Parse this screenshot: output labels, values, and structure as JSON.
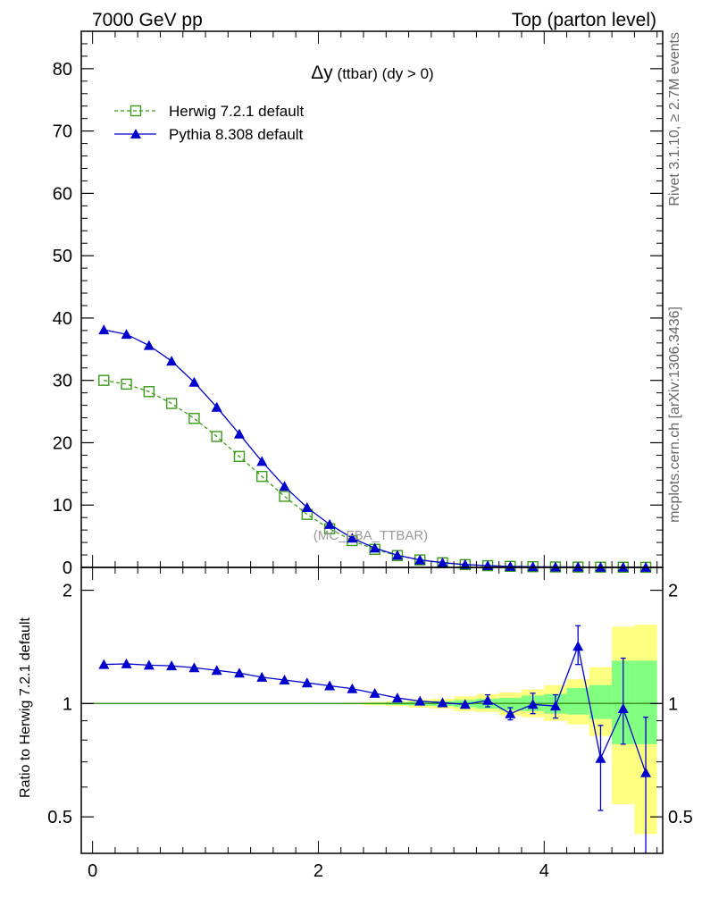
{
  "header": {
    "left_label": "7000 GeV pp",
    "right_label": "Top (parton level)"
  },
  "side_labels": {
    "rivet": "Rivet 3.1.10, ≥ 2.7M events",
    "source": "mcplots.cern.ch [arXiv:1306.3436]"
  },
  "watermark": "(MC_FBA_TTBAR)",
  "colors": {
    "herwig": "#3a9a1a",
    "pythia": "#0000cc",
    "band_yellow": "#ffff80",
    "band_green": "#80ff80"
  },
  "chart_data": [
    {
      "type": "line",
      "title_symbol": "Δy",
      "title_text": " (ttbar) (dy > 0)",
      "ylim": [
        0,
        86
      ],
      "xlim": [
        -0.1,
        5.05
      ],
      "yticks": [
        0,
        10,
        20,
        30,
        40,
        50,
        60,
        70,
        80
      ],
      "x": [
        0.1,
        0.3,
        0.5,
        0.7,
        0.9,
        1.1,
        1.3,
        1.5,
        1.7,
        1.9,
        2.1,
        2.3,
        2.5,
        2.7,
        2.9,
        3.1,
        3.3,
        3.5,
        3.7,
        3.9,
        4.1,
        4.3,
        4.5,
        4.7,
        4.9
      ],
      "series": [
        {
          "name": "Herwig 7.2.1 default",
          "marker": "open-square",
          "style": "dashed",
          "values": [
            30.0,
            29.4,
            28.2,
            26.3,
            23.9,
            21.0,
            17.8,
            14.6,
            11.4,
            8.5,
            6.2,
            4.3,
            2.9,
            1.9,
            1.2,
            0.75,
            0.45,
            0.28,
            0.17,
            0.11,
            0.07,
            0.05,
            0.04,
            0.03,
            0.02
          ]
        },
        {
          "name": "Pythia 8.308 default",
          "marker": "filled-triangle",
          "style": "solid",
          "values": [
            38.1,
            37.4,
            35.6,
            33.1,
            29.7,
            25.7,
            21.4,
            17.0,
            13.0,
            9.6,
            6.9,
            4.7,
            3.1,
            1.95,
            1.2,
            0.76,
            0.46,
            0.29,
            0.16,
            0.11,
            0.07,
            0.07,
            0.03,
            0.03,
            0.01
          ]
        }
      ],
      "legend_position": "top-left"
    },
    {
      "type": "line",
      "ylabel": "Ratio to Herwig 7.2.1 default",
      "ylim": [
        0.4,
        2.3
      ],
      "log_y": true,
      "xlim": [
        -0.1,
        5.05
      ],
      "xticks": [
        0,
        2,
        4
      ],
      "yticks": [
        0.5,
        1,
        2
      ],
      "reference_value": 1,
      "x": [
        0.1,
        0.3,
        0.5,
        0.7,
        0.9,
        1.1,
        1.3,
        1.5,
        1.7,
        1.9,
        2.1,
        2.3,
        2.5,
        2.7,
        2.9,
        3.1,
        3.3,
        3.5,
        3.7,
        3.9,
        4.1,
        4.3,
        4.5,
        4.7,
        4.9
      ],
      "series": [
        {
          "name": "Pythia 8.308 default",
          "values": [
            1.27,
            1.275,
            1.265,
            1.26,
            1.245,
            1.225,
            1.205,
            1.175,
            1.155,
            1.135,
            1.115,
            1.095,
            1.065,
            1.035,
            1.015,
            1.005,
            0.995,
            1.02,
            0.94,
            0.995,
            0.985,
            1.42,
            0.715,
            0.97,
            0.655
          ],
          "error_low": [
            0,
            0,
            0,
            0,
            0,
            0,
            0,
            0,
            0,
            0,
            0,
            0,
            0,
            0,
            0,
            0,
            0,
            0.98,
            0.905,
            0.94,
            0.915,
            1.27,
            0.52,
            0.78,
            0.37
          ],
          "error_high": [
            0,
            0,
            0,
            0,
            0,
            0,
            0,
            0,
            0,
            0,
            0,
            0,
            0,
            0,
            0,
            0,
            0,
            1.055,
            0.975,
            1.065,
            1.055,
            1.61,
            0.875,
            1.32,
            0.92
          ]
        }
      ],
      "herwig_uncertainty": {
        "yellow_low": [
          0.998,
          0.998,
          0.998,
          0.998,
          0.998,
          0.998,
          0.998,
          0.998,
          0.998,
          0.997,
          0.996,
          0.995,
          0.99,
          0.985,
          0.975,
          0.97,
          0.955,
          0.95,
          0.93,
          0.92,
          0.9,
          0.88,
          0.82,
          0.54,
          0.45
        ],
        "yellow_high": [
          1.002,
          1.002,
          1.002,
          1.002,
          1.002,
          1.002,
          1.002,
          1.002,
          1.002,
          1.003,
          1.004,
          1.005,
          1.01,
          1.015,
          1.025,
          1.03,
          1.045,
          1.06,
          1.07,
          1.09,
          1.12,
          1.16,
          1.25,
          1.6,
          1.62
        ],
        "green_low": [
          0.999,
          0.999,
          0.999,
          0.999,
          0.999,
          0.999,
          0.999,
          0.999,
          0.999,
          0.999,
          0.998,
          0.997,
          0.995,
          0.992,
          0.988,
          0.985,
          0.978,
          0.97,
          0.96,
          0.955,
          0.94,
          0.935,
          0.91,
          0.78,
          0.78
        ],
        "green_high": [
          1.001,
          1.001,
          1.001,
          1.001,
          1.001,
          1.001,
          1.001,
          1.001,
          1.001,
          1.001,
          1.002,
          1.003,
          1.005,
          1.008,
          1.012,
          1.015,
          1.022,
          1.03,
          1.035,
          1.05,
          1.06,
          1.1,
          1.12,
          1.3,
          1.3
        ]
      }
    }
  ]
}
